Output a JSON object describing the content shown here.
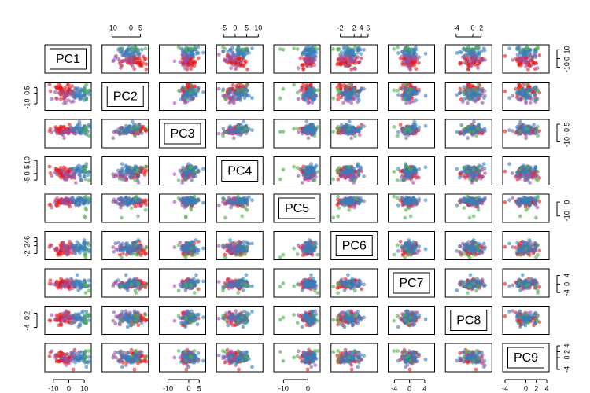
{
  "chart_data": {
    "type": "scatter",
    "title": "",
    "variables": [
      "PC1",
      "PC2",
      "PC3",
      "PC4",
      "PC5",
      "PC6",
      "PC7",
      "PC8",
      "PC9"
    ],
    "ranges": [
      [
        -14,
        13
      ],
      [
        -14,
        8
      ],
      [
        -13,
        7
      ],
      [
        -7,
        11
      ],
      [
        -13,
        4
      ],
      [
        -4,
        8
      ],
      [
        -5,
        6
      ],
      [
        -6,
        4
      ],
      [
        -4,
        4
      ]
    ],
    "ticks": [
      [
        -10,
        0,
        10
      ],
      [
        -10,
        0,
        5
      ],
      [
        -10,
        0,
        5
      ],
      [
        -5,
        0,
        5,
        10
      ],
      [
        -10,
        0
      ],
      [
        -2,
        2,
        4,
        6
      ],
      [
        -4,
        0,
        4
      ],
      [
        -4,
        0,
        2
      ],
      [
        -4,
        0,
        2,
        4
      ]
    ],
    "tick_labels": [
      [
        "-10",
        "0",
        "10"
      ],
      [
        "-10",
        "0",
        "5"
      ],
      [
        "-10",
        "0",
        "5"
      ],
      [
        "-5",
        "0",
        "5",
        "10"
      ],
      [
        "-10",
        "0"
      ],
      [
        "-2",
        "2",
        "4",
        "6"
      ],
      [
        "-4",
        "0",
        "4"
      ],
      [
        "-4",
        "0",
        "2"
      ],
      [
        "-4",
        "0",
        "2",
        "4"
      ]
    ],
    "axes_top": [
      1,
      3,
      5,
      7
    ],
    "axes_bottom": [
      0,
      2,
      4,
      6,
      8
    ],
    "axes_left": [
      1,
      3,
      5,
      7
    ],
    "axes_right": [
      0,
      2,
      4,
      6,
      8
    ],
    "groups": [
      {
        "color": "#E41A1C",
        "center": [
          -4,
          2,
          0,
          1,
          0,
          0,
          0,
          0,
          0
        ],
        "spread": [
          4,
          3,
          2,
          2.5,
          1.5,
          1.5,
          1.2,
          1.5,
          1.2
        ],
        "count": 45
      },
      {
        "color": "#984EA3",
        "center": [
          0,
          -3,
          -1,
          -1,
          0,
          0,
          0,
          0,
          0
        ],
        "spread": [
          5,
          3,
          2,
          2,
          1.5,
          1.3,
          1,
          1.3,
          1
        ],
        "count": 25
      },
      {
        "color": "#377EB8",
        "center": [
          7,
          0,
          1,
          2,
          1,
          1,
          0,
          0,
          0
        ],
        "spread": [
          3,
          3,
          2.5,
          2.5,
          1.5,
          1.8,
          1.3,
          1.5,
          1.2
        ],
        "count": 40
      },
      {
        "color": "#4DAF4A",
        "center": [
          10,
          2,
          0,
          0,
          -3,
          0,
          0,
          0,
          0
        ],
        "spread": [
          2,
          4,
          2,
          4,
          5,
          2,
          2,
          2,
          1.5
        ],
        "count": 6
      }
    ],
    "point_opacity": 0.6,
    "grid": false,
    "legend": "none"
  }
}
